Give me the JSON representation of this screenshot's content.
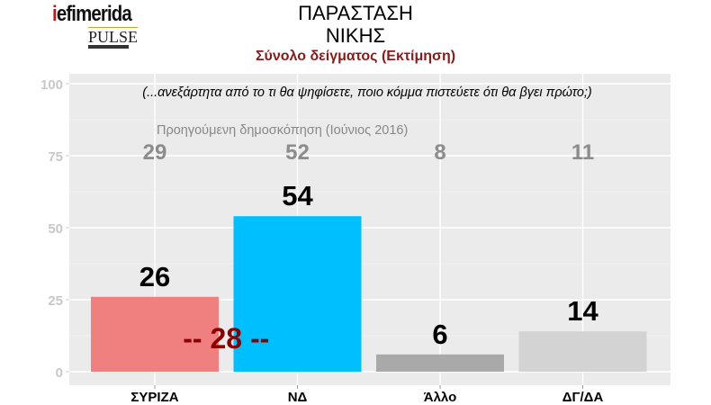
{
  "logo": {
    "brand": "iefimerida",
    "partner": "PULSE"
  },
  "title_lines": [
    "ΠΑΡΑΣΤΑΣΗ",
    "ΝΙΚΗΣ"
  ],
  "subtitle": "Σύνολο δείγματος   (Εκτίμηση)",
  "chart_data": {
    "type": "bar",
    "categories": [
      "ΣΥΡΙΖΑ",
      "ΝΔ",
      "Άλλο",
      "ΔΓ/ΔΑ"
    ],
    "values": [
      26,
      54,
      6,
      14
    ],
    "colors": [
      "#f08080",
      "#00bfff",
      "#a9a9a9",
      "#d3d3d3"
    ],
    "previous_label": "Προηγούμενη δημοσκόπηση (Ιούνιος 2016)",
    "previous_values": [
      29,
      52,
      8,
      11
    ],
    "question": "(...ανεξάρτητα από το τι θα ψηφίσετε, ποιο κόμμα πιστεύετε ότι θα βγει πρώτο;)",
    "gap_annotation": "-- 28 --",
    "yticks": [
      0,
      25,
      50,
      75,
      100
    ],
    "ylim": [
      0,
      100
    ],
    "grid": true,
    "background": "#ebebeb"
  }
}
